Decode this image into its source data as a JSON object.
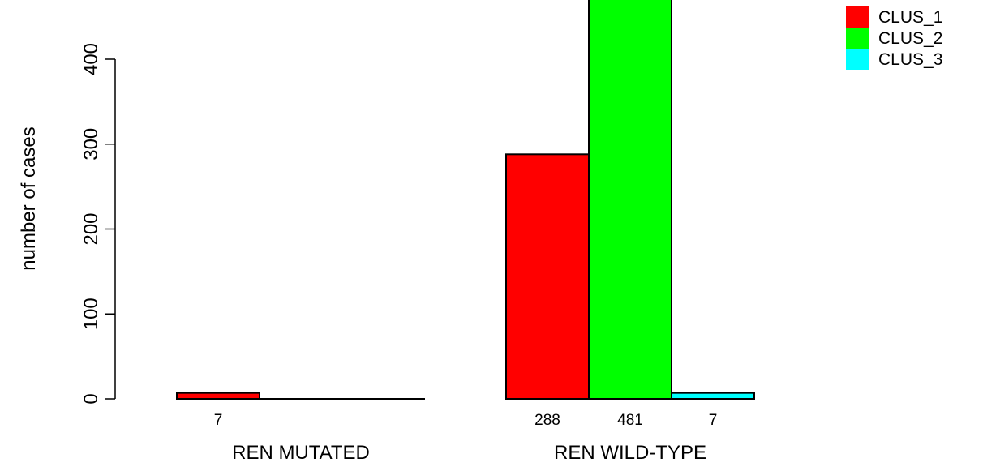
{
  "chart_data": {
    "type": "bar",
    "ylabel": "number of cases",
    "ylim": [
      0,
      450
    ],
    "yticks": [
      0,
      100,
      200,
      300,
      400
    ],
    "categories": [
      "REN MUTATED",
      "REN WILD-TYPE"
    ],
    "series": [
      {
        "name": "CLUS_1",
        "color": "#ff0000",
        "values": [
          7,
          288
        ],
        "labels": [
          "7",
          "288"
        ]
      },
      {
        "name": "CLUS_2",
        "color": "#00ff00",
        "values": [
          0,
          481
        ],
        "labels": [
          "",
          "481"
        ]
      },
      {
        "name": "CLUS_3",
        "color": "#00ffff",
        "values": [
          0,
          7
        ],
        "labels": [
          "",
          "7"
        ]
      }
    ],
    "legend_position": "top-right",
    "grid": false
  }
}
